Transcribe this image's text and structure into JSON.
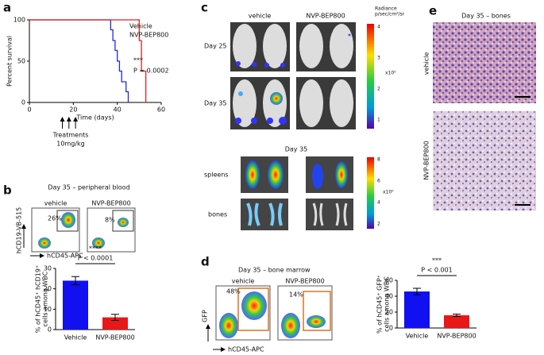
{
  "chart_data": [
    {
      "type": "line",
      "ylabel": "Percent survival",
      "xlabel": "Time (days)",
      "xlim": [
        0,
        60
      ],
      "xticks": [
        0,
        20,
        40,
        60
      ],
      "ylim": [
        0,
        100
      ],
      "yticks": [
        0,
        50,
        100
      ],
      "series": [
        {
          "name": "Vehicle",
          "color": "#1f2bd6",
          "x": [
            0,
            37,
            37,
            38,
            38,
            39,
            39,
            40,
            40,
            41,
            41,
            42,
            42,
            44,
            44,
            45,
            45
          ],
          "values": [
            100,
            100,
            88,
            88,
            75,
            75,
            63,
            63,
            50,
            50,
            38,
            38,
            25,
            25,
            13,
            13,
            0
          ]
        },
        {
          "name": "NVP-BEP800",
          "color": "#e0201f",
          "x": [
            0,
            50,
            50,
            51,
            51,
            53,
            53
          ],
          "values": [
            100,
            100,
            75,
            75,
            38,
            38,
            0
          ]
        }
      ],
      "annotations": [
        "***",
        "P = 0.0002"
      ],
      "treatment_days": [
        15,
        18,
        21
      ],
      "treatment_labels": [
        "Treatments",
        "10mg/kg"
      ]
    },
    {
      "type": "bar",
      "ylabel": [
        "% of hCD45⁺ hCD19⁺",
        "cells among WBC"
      ],
      "categories": [
        "Vehicle",
        "NVP-BEP800"
      ],
      "values": [
        24,
        6
      ],
      "errors": [
        2,
        1.5
      ],
      "colors": [
        "#1010f0",
        "#e81818"
      ],
      "ylim": [
        0,
        30
      ],
      "yticks": [
        0,
        10,
        20,
        30
      ],
      "annotations": [
        "****",
        "P < 0.0001"
      ]
    },
    {
      "type": "bar",
      "ylabel": [
        "% of hCD45⁺ GFP⁺",
        "cells among WBC"
      ],
      "categories": [
        "Vehicle",
        "NVP-BEP800"
      ],
      "values": [
        46,
        16
      ],
      "errors": [
        4,
        1.5
      ],
      "colors": [
        "#1010f0",
        "#e81818"
      ],
      "ylim": [
        0,
        60
      ],
      "yticks": [
        0,
        20,
        40,
        60
      ],
      "annotations": [
        "***",
        "P < 0.001"
      ]
    }
  ],
  "panels": {
    "a": {
      "letter": "a"
    },
    "b": {
      "letter": "b",
      "title": "Day 35 – peripheral blood",
      "columns": [
        "vehicle",
        "NVP-BEP800"
      ],
      "gates": [
        "26%",
        "8%"
      ],
      "y_axis": "hCD19-VB-515",
      "x_axis": "hCD45-APC"
    },
    "c": {
      "letter": "c",
      "columns": [
        "vehicle",
        "NVP-BEP800"
      ],
      "rows": [
        "Day 25",
        "Day 35"
      ],
      "radiance": [
        "Radiance",
        "p/sec/cm²/sr"
      ],
      "radiance_ticks": [
        "4",
        "3",
        "2",
        "1"
      ],
      "radiance_unit": "x10⁵",
      "organ_title": "Day 35",
      "organ_rows": [
        "spleens",
        "bones"
      ],
      "organ_ticks": [
        "8",
        "6",
        "4",
        "2"
      ],
      "organ_unit": "x10⁵"
    },
    "d": {
      "letter": "d",
      "title": "Day 35 – bone marrow",
      "columns": [
        "vehicle",
        "NVP-BEP800"
      ],
      "gates": [
        "48%",
        "14%"
      ],
      "y_axis": "GFP",
      "x_axis": "hCD45-APC"
    },
    "e": {
      "letter": "e",
      "title": "Day 35 – bones",
      "rows": [
        "vehicle",
        "NVP-BEP800"
      ]
    }
  }
}
